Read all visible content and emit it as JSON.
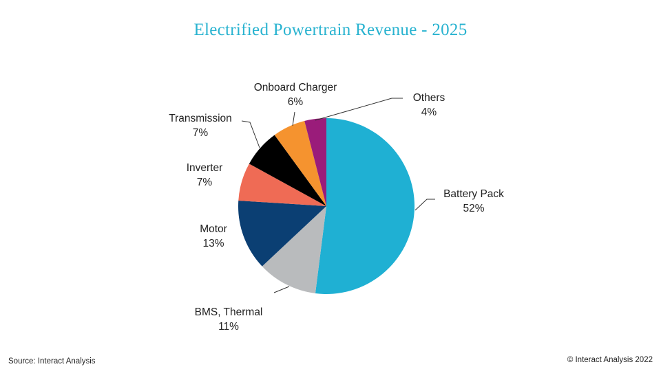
{
  "chart_data": {
    "type": "pie",
    "title": "Electrified Powertrain Revenue - 2025",
    "unit": "%",
    "slices": [
      {
        "label": "Battery Pack",
        "value": 52,
        "display": "52%",
        "color": "#1fb0d3"
      },
      {
        "label": "BMS, Thermal",
        "value": 11,
        "display": "11%",
        "color": "#b9bbbd"
      },
      {
        "label": "Motor",
        "value": 13,
        "display": "13%",
        "color": "#0b3f73"
      },
      {
        "label": "Inverter",
        "value": 7,
        "display": "7%",
        "color": "#ef6b55"
      },
      {
        "label": "Transmission",
        "value": 7,
        "display": "7%",
        "color": "#000000"
      },
      {
        "label": "Onboard Charger",
        "value": 6,
        "display": "6%",
        "color": "#f5932f"
      },
      {
        "label": "Others",
        "value": 4,
        "display": "4%",
        "color": "#9a1c7a"
      }
    ]
  },
  "footer": {
    "source": "Source: Interact Analysis",
    "copyright": "© Interact Analysis 2022"
  }
}
